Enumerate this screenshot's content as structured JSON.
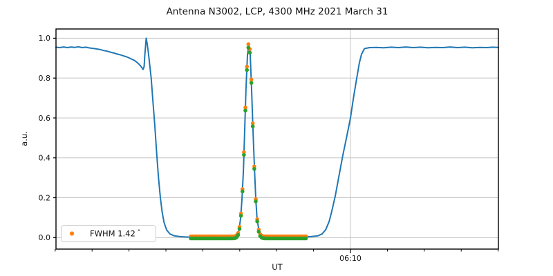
{
  "figure": {
    "title": "Antenna N3002, LCP, 4300 MHz 2021 March 31",
    "xlabel": "UT",
    "ylabel": "a.u."
  },
  "legend": {
    "label": "FWHM 1.42",
    "degree_symbol": "°",
    "marker_color": "#ff7f0e"
  },
  "colors": {
    "signal_line": "#1f77b4",
    "data_points": "#ff7f0e",
    "fit_points": "#2ca02c",
    "grid": "#c6c6c6",
    "spine": "#000000"
  },
  "chart_data": {
    "type": "line",
    "title": "Antenna N3002, LCP, 4300 MHz 2021 March 31",
    "xlabel": "UT",
    "ylabel": "a.u.",
    "fwhm_deg": 1.42,
    "x_axis": {
      "unit": "minutes after 06:00 UT",
      "lim": [
        2.022,
        14.007
      ],
      "major_ticks": [
        {
          "t": 10,
          "label": "06:10"
        }
      ],
      "minor_ticks": [
        2,
        3,
        4,
        5,
        6,
        7,
        8,
        9,
        11,
        12,
        13,
        14
      ],
      "grid_on_major": true
    },
    "y_axis": {
      "lim": [
        -0.0577,
        1.0463
      ],
      "ticks": [
        0.0,
        0.2,
        0.4,
        0.6,
        0.8,
        1.0
      ],
      "tick_labels": [
        "0.0",
        "0.2",
        "0.4",
        "0.6",
        "0.8",
        "1.0"
      ],
      "grid": true
    },
    "legend": {
      "label": "FWHM 1.42 °",
      "location": "lower left"
    },
    "series": [
      {
        "name": "drift-scan-signal",
        "type": "line",
        "color": "#1f77b4",
        "width": 2,
        "points": [
          [
            2.022,
            0.955
          ],
          [
            2.12,
            0.953
          ],
          [
            2.23,
            0.956
          ],
          [
            2.33,
            0.953
          ],
          [
            2.43,
            0.956
          ],
          [
            2.53,
            0.954
          ],
          [
            2.63,
            0.957
          ],
          [
            2.73,
            0.953
          ],
          [
            2.83,
            0.955
          ],
          [
            2.93,
            0.951
          ],
          [
            3.03,
            0.949
          ],
          [
            3.13,
            0.946
          ],
          [
            3.22,
            0.943
          ],
          [
            3.32,
            0.938
          ],
          [
            3.41,
            0.935
          ],
          [
            3.5,
            0.93
          ],
          [
            3.6,
            0.925
          ],
          [
            3.69,
            0.92
          ],
          [
            3.78,
            0.916
          ],
          [
            3.88,
            0.91
          ],
          [
            3.97,
            0.904
          ],
          [
            4.06,
            0.896
          ],
          [
            4.15,
            0.888
          ],
          [
            4.21,
            0.88
          ],
          [
            4.26,
            0.872
          ],
          [
            4.31,
            0.862
          ],
          [
            4.35,
            0.852
          ],
          [
            4.38,
            0.843
          ],
          [
            4.41,
            0.858
          ],
          [
            4.43,
            0.92
          ],
          [
            4.466,
            1.0
          ],
          [
            4.49,
            0.975
          ],
          [
            4.52,
            0.935
          ],
          [
            4.55,
            0.885
          ],
          [
            4.6,
            0.8
          ],
          [
            4.65,
            0.68
          ],
          [
            4.7,
            0.56
          ],
          [
            4.75,
            0.42
          ],
          [
            4.8,
            0.3
          ],
          [
            4.85,
            0.2
          ],
          [
            4.9,
            0.125
          ],
          [
            4.95,
            0.075
          ],
          [
            5.02,
            0.038
          ],
          [
            5.11,
            0.018
          ],
          [
            5.22,
            0.009
          ],
          [
            5.38,
            0.005
          ],
          [
            5.56,
            0.003
          ],
          [
            5.84,
            0.003
          ],
          [
            6.12,
            0.003
          ],
          [
            6.5,
            0.003
          ],
          [
            6.8,
            0.004
          ],
          [
            6.91,
            0.006
          ],
          [
            6.97,
            0.025
          ],
          [
            7.02,
            0.092
          ],
          [
            7.06,
            0.19
          ],
          [
            7.1,
            0.34
          ],
          [
            7.135,
            0.54
          ],
          [
            7.17,
            0.75
          ],
          [
            7.21,
            0.915
          ],
          [
            7.247,
            0.972
          ],
          [
            7.285,
            0.915
          ],
          [
            7.32,
            0.75
          ],
          [
            7.36,
            0.54
          ],
          [
            7.4,
            0.34
          ],
          [
            7.435,
            0.19
          ],
          [
            7.47,
            0.092
          ],
          [
            7.53,
            0.025
          ],
          [
            7.58,
            0.007
          ],
          [
            7.66,
            0.004
          ],
          [
            7.81,
            0.003
          ],
          [
            8.09,
            0.003
          ],
          [
            8.37,
            0.003
          ],
          [
            8.65,
            0.004
          ],
          [
            8.93,
            0.005
          ],
          [
            9.12,
            0.009
          ],
          [
            9.23,
            0.018
          ],
          [
            9.33,
            0.04
          ],
          [
            9.42,
            0.08
          ],
          [
            9.49,
            0.13
          ],
          [
            9.59,
            0.21
          ],
          [
            9.68,
            0.3
          ],
          [
            9.79,
            0.41
          ],
          [
            9.89,
            0.5
          ],
          [
            10.0,
            0.6
          ],
          [
            10.08,
            0.7
          ],
          [
            10.17,
            0.8
          ],
          [
            10.24,
            0.875
          ],
          [
            10.3,
            0.92
          ],
          [
            10.38,
            0.948
          ],
          [
            10.52,
            0.953
          ],
          [
            10.7,
            0.954
          ],
          [
            10.9,
            0.952
          ],
          [
            11.1,
            0.955
          ],
          [
            11.3,
            0.953
          ],
          [
            11.5,
            0.956
          ],
          [
            11.7,
            0.953
          ],
          [
            11.9,
            0.955
          ],
          [
            12.1,
            0.952
          ],
          [
            12.3,
            0.954
          ],
          [
            12.5,
            0.953
          ],
          [
            12.7,
            0.956
          ],
          [
            12.9,
            0.953
          ],
          [
            13.1,
            0.955
          ],
          [
            13.3,
            0.952
          ],
          [
            13.5,
            0.954
          ],
          [
            13.7,
            0.953
          ],
          [
            13.85,
            0.955
          ],
          [
            14.007,
            0.954
          ]
        ]
      },
      {
        "name": "source-data-points",
        "type": "scatter",
        "color": "#ff7f0e",
        "radius": 2.8,
        "gaussian": {
          "center": 7.247,
          "sigma": 0.103,
          "amplitude": 0.972,
          "baseline": 0.006,
          "start": 5.674,
          "end": 8.802,
          "step": 0.04
        }
      },
      {
        "name": "gaussian-fit-points",
        "type": "scatter",
        "color": "#2ca02c",
        "radius": 2.8,
        "gaussian": {
          "center": 7.247,
          "sigma": 0.103,
          "amplitude": 0.964,
          "baseline": -0.004,
          "start": 5.674,
          "end": 8.802,
          "step": 0.04
        }
      }
    ]
  }
}
